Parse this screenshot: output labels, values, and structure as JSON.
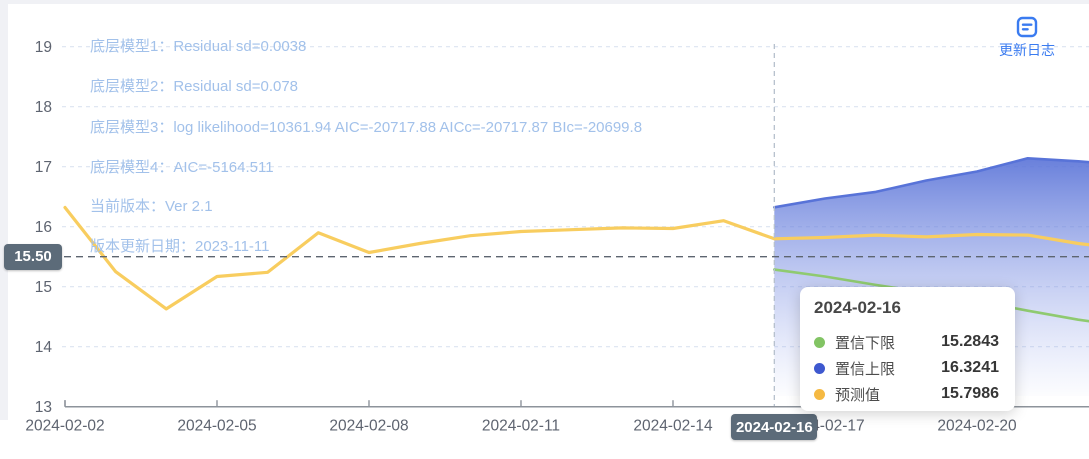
{
  "chart_data": {
    "type": "line",
    "title": "",
    "xlabel": "",
    "ylabel": "",
    "ylim": [
      13,
      19
    ],
    "y_ticks": [
      13,
      14,
      15,
      16,
      17,
      18,
      19
    ],
    "grid": true,
    "legend_position": "none",
    "categories": [
      "2024-02-02",
      "2024-02-03",
      "2024-02-04",
      "2024-02-05",
      "2024-02-06",
      "2024-02-07",
      "2024-02-08",
      "2024-02-09",
      "2024-02-10",
      "2024-02-11",
      "2024-02-12",
      "2024-02-13",
      "2024-02-14",
      "2024-02-15",
      "2024-02-16",
      "2024-02-17",
      "2024-02-18",
      "2024-02-19",
      "2024-02-20",
      "2024-02-21",
      "2024-02-22",
      "2024-02-23"
    ],
    "x_tick_indices": [
      0,
      3,
      6,
      9,
      12,
      15,
      18
    ],
    "x_tick_labels": [
      "2024-02-02",
      "2024-02-05",
      "2024-02-08",
      "2024-02-11",
      "2024-02-14",
      "2024-02-17",
      "2024-02-20"
    ],
    "forecast_start": "2024-02-16",
    "series": [
      {
        "name": "预测值",
        "role": "forecast",
        "color": "#f8cd5f",
        "values": [
          16.32,
          15.25,
          14.63,
          15.17,
          15.24,
          15.9,
          15.57,
          15.72,
          15.85,
          15.92,
          15.95,
          15.98,
          15.97,
          16.1,
          15.7986,
          15.82,
          15.86,
          15.83,
          15.87,
          15.86,
          15.72,
          15.62
        ]
      },
      {
        "name": "置信上限",
        "role": "upper",
        "color": "#5873d8",
        "values": [
          null,
          null,
          null,
          null,
          null,
          null,
          null,
          null,
          null,
          null,
          null,
          null,
          null,
          null,
          16.3241,
          16.47,
          16.58,
          16.77,
          16.92,
          17.14,
          17.09,
          17.02
        ]
      },
      {
        "name": "置信下限",
        "role": "lower",
        "color": "#8fca70",
        "values": [
          null,
          null,
          null,
          null,
          null,
          null,
          null,
          null,
          null,
          null,
          null,
          null,
          null,
          null,
          15.2843,
          15.17,
          15.03,
          14.9,
          14.76,
          14.6,
          14.45,
          14.33
        ]
      }
    ],
    "area_gradient_top": "rgba(92,117,216,0.92)",
    "area_gradient_bottom": "rgba(160,175,238,0.03)",
    "gridline_color": "#dbe4f1",
    "axis_color": "#8d939b",
    "tick_label_color": "#5e6470"
  },
  "annotations": {
    "lines": [
      "底层模型1：Residual sd=0.0038",
      "底层模型2：Residual sd=0.078",
      "底层模型3：log likelihood=10361.94 AIC=-20717.88 AICc=-20717.87 BIc=-20699.8",
      "底层模型4：AIC=-5164.511",
      "当前版本：Ver 2.1",
      "版本更新日期：2023-11-11"
    ]
  },
  "crosshair": {
    "x_date": "2024-02-16",
    "x_label": "2024-02-16",
    "y_value": 15.5,
    "y_label": "15.50",
    "h_line_color": "#5d6570",
    "v_line_color": "#b6c0cd",
    "badge_color": "#5c6b79"
  },
  "tooltip": {
    "title": "2024-02-16",
    "rows": [
      {
        "label": "置信下限",
        "value": "15.2843",
        "color": "#82c464"
      },
      {
        "label": "置信上限",
        "value": "16.3241",
        "color": "#3e58cf"
      },
      {
        "label": "预测值",
        "value": "15.7986",
        "color": "#f5b942"
      }
    ]
  },
  "update_log": {
    "label": "更新日志",
    "color": "#3a7bf0"
  }
}
